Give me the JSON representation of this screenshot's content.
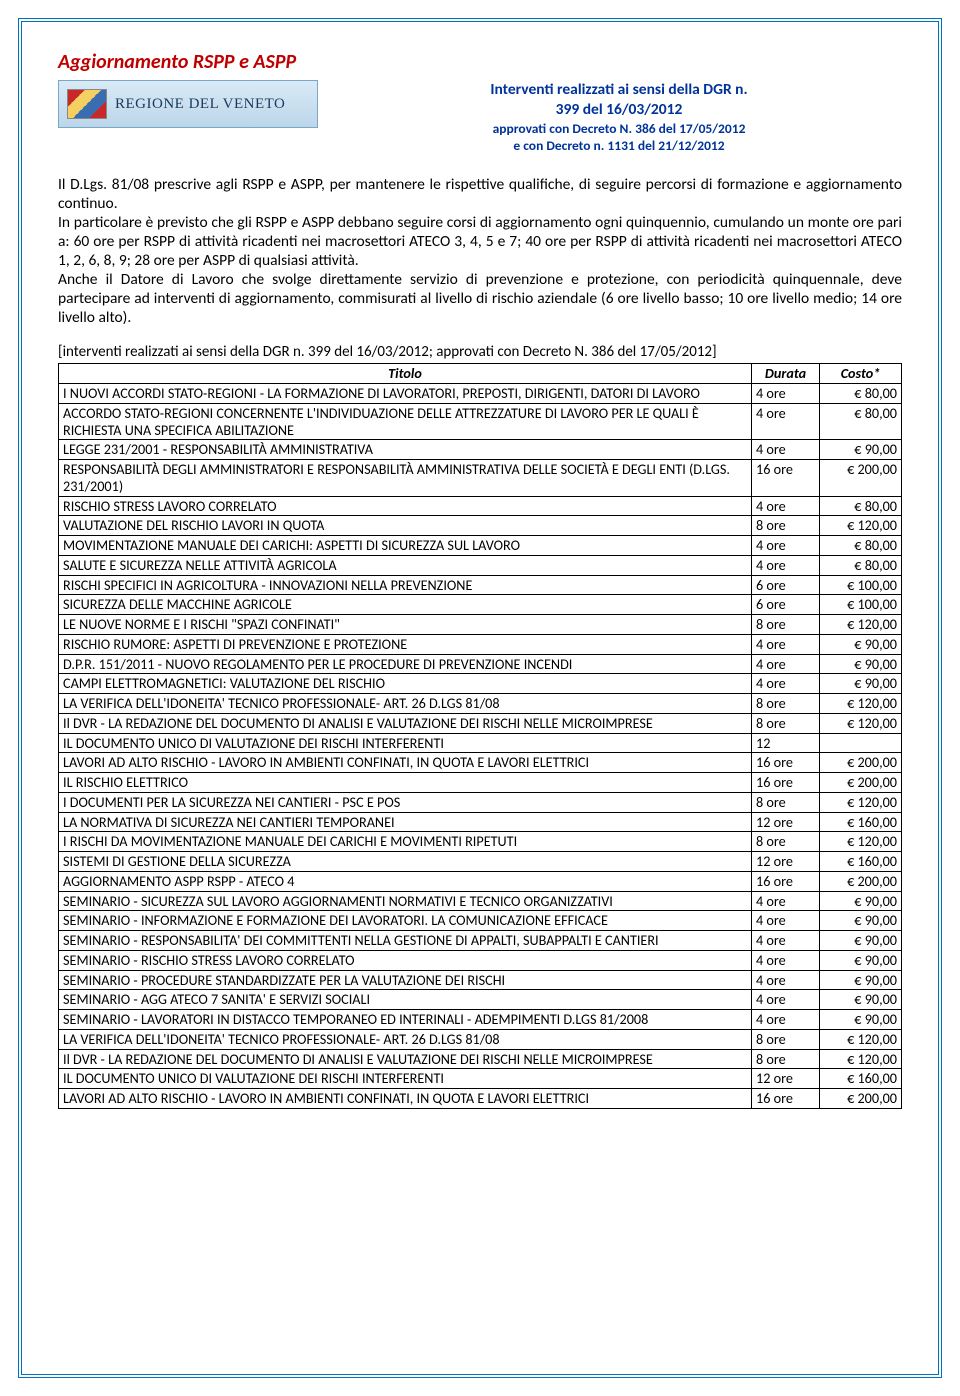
{
  "page_title": "Aggiornamento RSPP e ASPP",
  "logo_text": "REGIONE DEL VENETO",
  "header_line1": "Interventi realizzati ai sensi della DGR n.",
  "header_line2": "399 del 16/03/2012",
  "header_line3": "approvati con Decreto N. 386 del 17/05/2012",
  "header_line4": "e con Decreto n. 1131 del 21/12/2012",
  "body": "Il D.Lgs. 81/08 prescrive agli RSPP e ASPP, per mantenere le rispettive qualifiche, di seguire percorsi di formazione e aggiornamento continuo.\nIn particolare è previsto che gli RSPP e ASPP debbano seguire corsi di aggiornamento ogni quinquennio, cumulando un monte ore pari a: 60 ore per RSPP di attività ricadenti nei macrosettori ATECO 3, 4, 5 e 7; 40 ore per RSPP di attività ricadenti nei macrosettori ATECO 1, 2, 6, 8, 9; 28 ore per ASPP di qualsiasi attività.\nAnche il Datore di Lavoro che svolge direttamente servizio di prevenzione e protezione, con periodicità quinquennale, deve partecipare ad interventi di aggiornamento, commisurati al livello di rischio aziendale (6 ore livello basso; 10 ore livello medio; 14 ore livello alto).",
  "table_caption": "[interventi realizzati ai sensi della DGR n. 399 del 16/03/2012; approvati con Decreto N. 386 del 17/05/2012]",
  "headers": {
    "title": "Titolo",
    "duration": "Durata",
    "cost": "Costo*"
  },
  "rows": [
    {
      "t": "I NUOVI ACCORDI STATO-REGIONI - LA FORMAZIONE DI LAVORATORI, PREPOSTI, DIRIGENTI, DATORI DI LAVORO",
      "d": "4 ore",
      "c": "€ 80,00"
    },
    {
      "t": "ACCORDO STATO-REGIONI CONCERNENTE L'INDIVIDUAZIONE DELLE ATTREZZATURE DI LAVORO PER LE QUALI È RICHIESTA UNA SPECIFICA ABILITAZIONE",
      "d": "4 ore",
      "c": "€ 80,00"
    },
    {
      "t": "LEGGE 231/2001 - RESPONSABILITÀ AMMINISTRATIVA",
      "d": "4 ore",
      "c": "€ 90,00"
    },
    {
      "t": "RESPONSABILITÀ DEGLI AMMINISTRATORI E RESPONSABILITÀ AMMINISTRATIVA DELLE SOCIETÀ E DEGLI ENTI (D.LGS. 231/2001)",
      "d": "16 ore",
      "c": "€ 200,00"
    },
    {
      "t": "RISCHIO STRESS LAVORO CORRELATO",
      "d": "4 ore",
      "c": "€ 80,00"
    },
    {
      "t": "VALUTAZIONE DEL RISCHIO LAVORI IN QUOTA",
      "d": "8 ore",
      "c": "€ 120,00"
    },
    {
      "t": "MOVIMENTAZIONE MANUALE DEI CARICHI: ASPETTI DI SICUREZZA SUL LAVORO",
      "d": "4 ore",
      "c": "€ 80,00"
    },
    {
      "t": "SALUTE E SICUREZZA NELLE ATTIVITÀ AGRICOLA",
      "d": "4 ore",
      "c": "€ 80,00"
    },
    {
      "t": "RISCHI SPECIFICI IN AGRICOLTURA - INNOVAZIONI NELLA PREVENZIONE",
      "d": "6 ore",
      "c": "€ 100,00"
    },
    {
      "t": "SICUREZZA DELLE MACCHINE AGRICOLE",
      "d": "6 ore",
      "c": "€ 100,00"
    },
    {
      "t": "LE NUOVE NORME E I RISCHI \"SPAZI CONFINATI\"",
      "d": "8 ore",
      "c": "€ 120,00"
    },
    {
      "t": "RISCHIO RUMORE: ASPETTI DI PREVENZIONE E PROTEZIONE",
      "d": "4 ore",
      "c": "€ 90,00"
    },
    {
      "t": "D.P.R. 151/2011 - NUOVO REGOLAMENTO PER LE PROCEDURE DI PREVENZIONE INCENDI",
      "d": "4 ore",
      "c": "€ 90,00"
    },
    {
      "t": "CAMPI ELETTROMAGNETICI: VALUTAZIONE DEL RISCHIO",
      "d": "4 ore",
      "c": "€ 90,00"
    },
    {
      "t": "LA VERIFICA DELL'IDONEITA' TECNICO PROFESSIONALE- ART. 26 D.LGS 81/08",
      "d": "8 ore",
      "c": "€ 120,00"
    },
    {
      "t": "Il DVR - LA REDAZIONE DEL DOCUMENTO DI ANALISI E VALUTAZIONE DEI RISCHI NELLE MICROIMPRESE",
      "d": "8 ore",
      "c": "€ 120,00"
    },
    {
      "t": "IL DOCUMENTO UNICO DI VALUTAZIONE DEI RISCHI INTERFERENTI",
      "d": "12",
      "c": ""
    },
    {
      "t": "LAVORI AD ALTO RISCHIO - LAVORO IN AMBIENTI CONFINATI, IN QUOTA E LAVORI ELETTRICI",
      "d": "16 ore",
      "c": "€ 200,00"
    },
    {
      "t": "IL RISCHIO ELETTRICO",
      "d": "16 ore",
      "c": "€ 200,00"
    },
    {
      "t": "I DOCUMENTI PER LA SICUREZZA NEI CANTIERI - PSC E POS",
      "d": "8 ore",
      "c": "€ 120,00"
    },
    {
      "t": "LA NORMATIVA DI SICUREZZA NEI CANTIERI TEMPORANEI",
      "d": "12 ore",
      "c": "€ 160,00"
    },
    {
      "t": "I RISCHI DA MOVIMENTAZIONE MANUALE DEI CARICHI E MOVIMENTI RIPETUTI",
      "d": "8 ore",
      "c": "€ 120,00"
    },
    {
      "t": "SISTEMI DI GESTIONE DELLA SICUREZZA",
      "d": "12 ore",
      "c": "€ 160,00"
    },
    {
      "t": "AGGIORNAMENTO ASPP RSPP - ATECO 4",
      "d": "16 ore",
      "c": "€ 200,00"
    },
    {
      "t": "SEMINARIO - SICUREZZA SUL LAVORO AGGIORNAMENTI NORMATIVI E TECNICO ORGANIZZATIVI",
      "d": "4 ore",
      "c": "€ 90,00"
    },
    {
      "t": "SEMINARIO - INFORMAZIONE E FORMAZIONE DEI LAVORATORI. LA COMUNICAZIONE EFFICACE",
      "d": "4 ore",
      "c": "€ 90,00"
    },
    {
      "t": "SEMINARIO - RESPONSABILITA' DEI COMMITTENTI NELLA GESTIONE DI APPALTI, SUBAPPALTI E CANTIERI",
      "d": "4 ore",
      "c": "€ 90,00"
    },
    {
      "t": "SEMINARIO - RISCHIO STRESS LAVORO CORRELATO",
      "d": "4 ore",
      "c": "€ 90,00"
    },
    {
      "t": "SEMINARIO - PROCEDURE STANDARDIZZATE PER LA VALUTAZIONE DEI RISCHI",
      "d": "4 ore",
      "c": "€ 90,00"
    },
    {
      "t": "SEMINARIO - AGG ATECO 7 SANITA' E SERVIZI SOCIALI",
      "d": "4 ore",
      "c": "€ 90,00"
    },
    {
      "t": "SEMINARIO - LAVORATORI IN DISTACCO TEMPORANEO ED INTERINALI - ADEMPIMENTI D.LGS 81/2008",
      "d": "4 ore",
      "c": "€ 90,00"
    },
    {
      "t": "LA VERIFICA DELL'IDONEITA' TECNICO PROFESSIONALE- ART. 26 D.LGS 81/08",
      "d": "8 ore",
      "c": "€ 120,00"
    },
    {
      "t": "Il DVR - LA REDAZIONE DEL DOCUMENTO DI ANALISI E VALUTAZIONE DEI RISCHI NELLE MICROIMPRESE",
      "d": "8 ore",
      "c": "€ 120,00"
    },
    {
      "t": "IL DOCUMENTO UNICO DI VALUTAZIONE DEI RISCHI INTERFERENTI",
      "d": "12 ore",
      "c": "€ 160,00"
    },
    {
      "t": "LAVORI AD ALTO RISCHIO - LAVORO IN AMBIENTI CONFINATI, IN QUOTA E LAVORI ELETTRICI",
      "d": "16 ore",
      "c": "€ 200,00"
    }
  ],
  "colors": {
    "border": "#0070c0",
    "title": "#c00000",
    "header_text": "#003399",
    "text": "#000000"
  }
}
